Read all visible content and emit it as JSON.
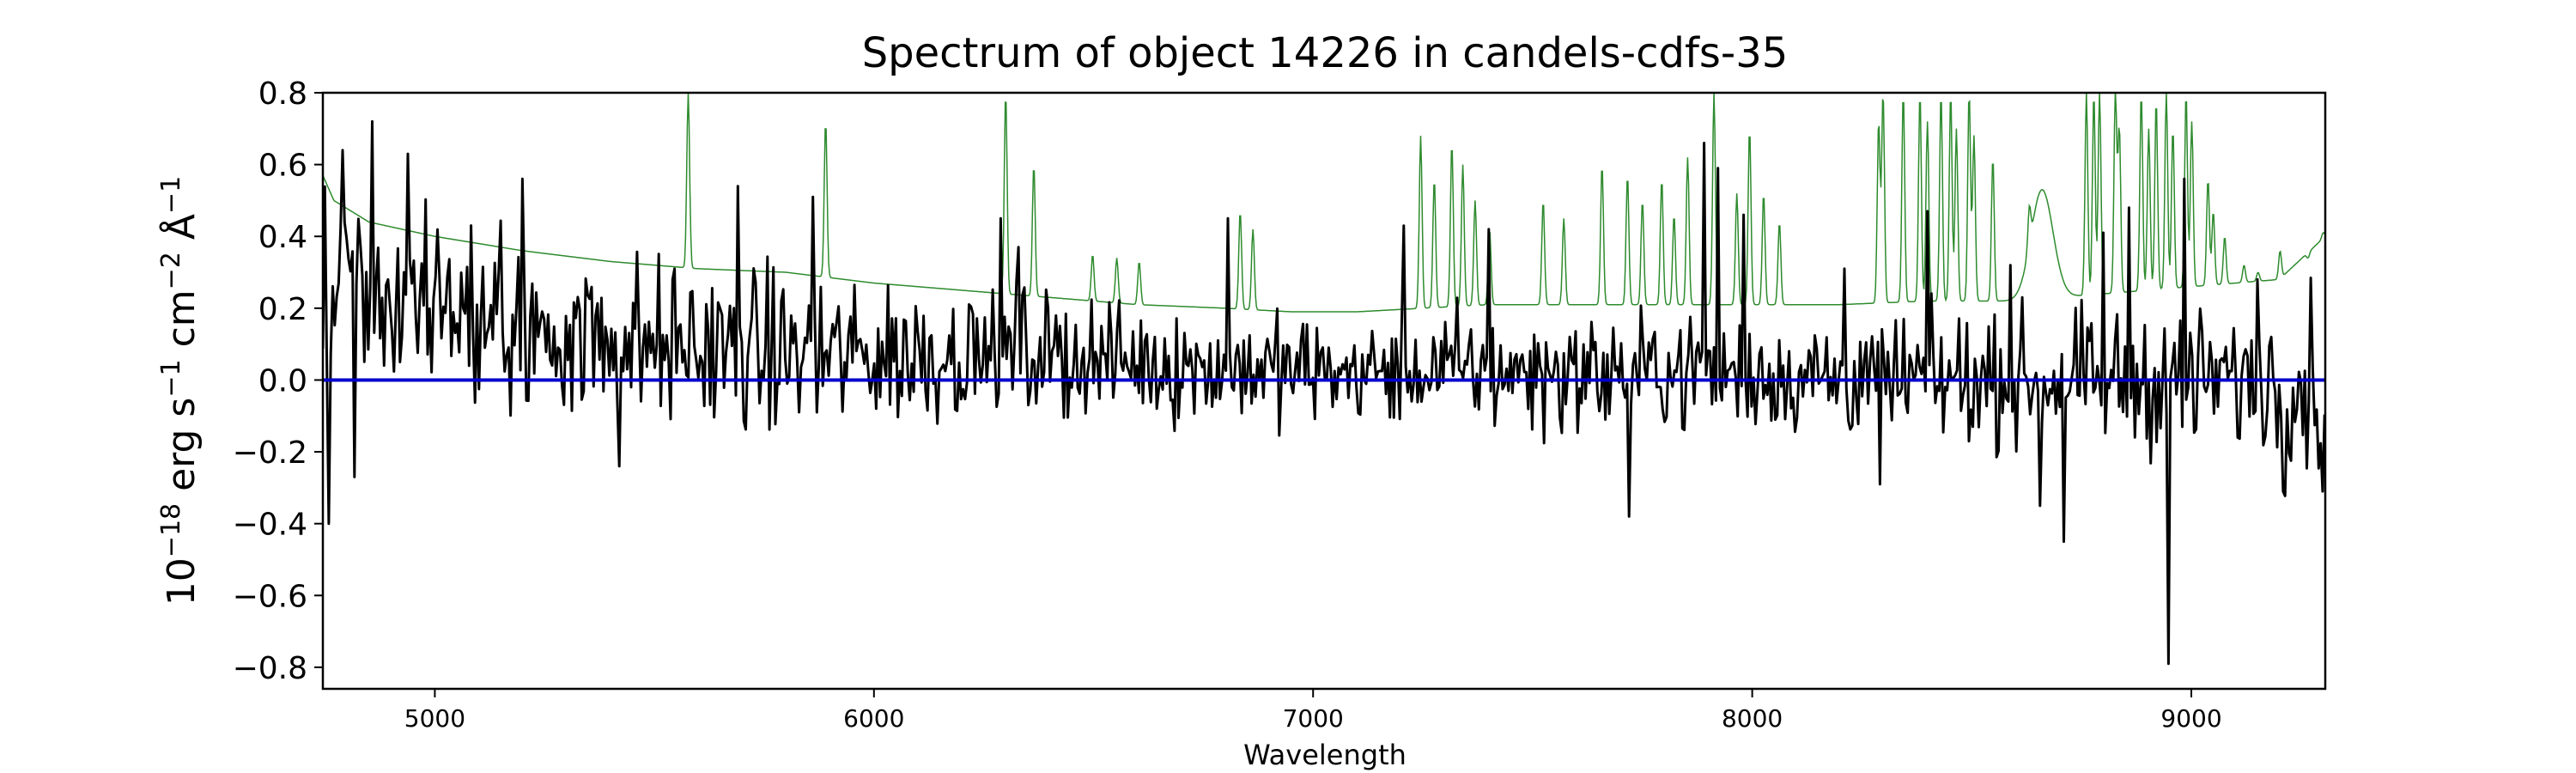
{
  "chart_data": {
    "type": "line",
    "title": "Spectrum of object 14226 in candels-cdfs-35",
    "xlabel": "Wavelength",
    "ylabel_parts": [
      "10",
      "−18",
      " erg s",
      "−1",
      " cm",
      "−2",
      " Å",
      "−1"
    ],
    "xlim": [
      4745,
      9305
    ],
    "ylim": [
      -0.86,
      0.8
    ],
    "xticks": [
      5000,
      6000,
      7000,
      8000,
      9000
    ],
    "yticks": [
      0.8,
      0.6,
      0.4,
      0.2,
      0.0,
      -0.2,
      -0.4,
      -0.6,
      -0.8
    ],
    "ytick_labels": [
      "0.8",
      "0.6",
      "0.4",
      "0.2",
      "0.0",
      "−0.2",
      "−0.4",
      "−0.6",
      "−0.8"
    ],
    "grid": false,
    "legend": "none",
    "series": [
      {
        "role": "flux",
        "color": "#000000",
        "sampling_angstrom": 4.5,
        "smooth_points": [
          [
            4745,
            0.35
          ],
          [
            4800,
            0.3
          ],
          [
            4900,
            0.22
          ],
          [
            5000,
            0.19
          ],
          [
            5100,
            0.16
          ],
          [
            5300,
            0.13
          ],
          [
            5500,
            0.1
          ],
          [
            5700,
            0.08
          ],
          [
            5900,
            0.07
          ],
          [
            6100,
            0.07
          ],
          [
            6300,
            0.08
          ],
          [
            6500,
            0.06
          ],
          [
            6700,
            0.04
          ],
          [
            6900,
            0.03
          ],
          [
            7100,
            0.02
          ],
          [
            7300,
            0.03
          ],
          [
            7500,
            0.02
          ],
          [
            7700,
            0.02
          ],
          [
            7900,
            0.03
          ],
          [
            8100,
            0.01
          ],
          [
            8300,
            0.0
          ],
          [
            8500,
            0.0
          ],
          [
            8700,
            0.0
          ],
          [
            8900,
            0.0
          ],
          [
            9100,
            0.0
          ],
          [
            9305,
            0.0
          ]
        ],
        "spikes": [
          [
            4757,
            -0.4
          ],
          [
            4790,
            0.64
          ],
          [
            4815,
            -0.27
          ],
          [
            4858,
            0.72
          ],
          [
            4940,
            0.63
          ],
          [
            5200,
            0.56
          ],
          [
            5420,
            -0.24
          ],
          [
            5690,
            0.54
          ],
          [
            5860,
            0.51
          ],
          [
            6290,
            0.45
          ],
          [
            6330,
            0.37
          ],
          [
            6805,
            0.45
          ],
          [
            7205,
            0.43
          ],
          [
            7400,
            0.42
          ],
          [
            7720,
            -0.38
          ],
          [
            7890,
            0.66
          ],
          [
            7920,
            0.59
          ],
          [
            7980,
            0.46
          ],
          [
            8210,
            0.31
          ],
          [
            8290,
            -0.29
          ],
          [
            8400,
            0.47
          ],
          [
            8590,
            0.32
          ],
          [
            8655,
            -0.35
          ],
          [
            8710,
            -0.45
          ],
          [
            8800,
            0.41
          ],
          [
            8858,
            0.48
          ],
          [
            8948,
            -0.79
          ],
          [
            8985,
            0.56
          ],
          [
            9150,
            0.28
          ],
          [
            9210,
            -0.31
          ],
          [
            9300,
            -0.31
          ]
        ]
      },
      {
        "role": "model",
        "color": "#0000cc",
        "points": [
          [
            4745,
            0.0
          ],
          [
            9305,
            0.0
          ]
        ]
      },
      {
        "role": "error",
        "color": "#2e8b2e",
        "continuum_points": [
          [
            4745,
            0.57
          ],
          [
            4770,
            0.5
          ],
          [
            4850,
            0.44
          ],
          [
            5000,
            0.4
          ],
          [
            5200,
            0.36
          ],
          [
            5400,
            0.33
          ],
          [
            5600,
            0.31
          ],
          [
            5800,
            0.3
          ],
          [
            6000,
            0.27
          ],
          [
            6200,
            0.25
          ],
          [
            6400,
            0.23
          ],
          [
            6600,
            0.21
          ],
          [
            6800,
            0.2
          ],
          [
            6950,
            0.19
          ],
          [
            7100,
            0.19
          ],
          [
            7250,
            0.2
          ],
          [
            7400,
            0.21
          ],
          [
            7600,
            0.21
          ],
          [
            7800,
            0.21
          ],
          [
            8000,
            0.21
          ],
          [
            8200,
            0.21
          ],
          [
            8400,
            0.22
          ],
          [
            8600,
            0.22
          ],
          [
            8800,
            0.24
          ],
          [
            9000,
            0.26
          ],
          [
            9200,
            0.28
          ],
          [
            9305,
            0.4
          ]
        ],
        "emission_lines": [
          [
            5577,
            0.8
          ],
          [
            5890,
            0.72
          ],
          [
            6300,
            0.8
          ],
          [
            6364,
            0.6
          ],
          [
            6498,
            0.35
          ],
          [
            6553,
            0.34
          ],
          [
            6604,
            0.33
          ],
          [
            6834,
            0.47
          ],
          [
            6863,
            0.42
          ],
          [
            7245,
            0.68
          ],
          [
            7276,
            0.56
          ],
          [
            7316,
            0.66
          ],
          [
            7341,
            0.6
          ],
          [
            7369,
            0.5
          ],
          [
            7402,
            0.42
          ],
          [
            7524,
            0.5
          ],
          [
            7571,
            0.45
          ],
          [
            7658,
            0.6
          ],
          [
            7716,
            0.57
          ],
          [
            7750,
            0.5
          ],
          [
            7794,
            0.56
          ],
          [
            7822,
            0.46
          ],
          [
            7853,
            0.62
          ],
          [
            7913,
            0.8
          ],
          [
            7965,
            0.52
          ],
          [
            7994,
            0.7
          ],
          [
            8026,
            0.52
          ],
          [
            8062,
            0.44
          ],
          [
            8288,
            0.72
          ],
          [
            8298,
            0.8
          ],
          [
            8344,
            0.8
          ],
          [
            8382,
            0.8
          ],
          [
            8399,
            0.72
          ],
          [
            8430,
            0.8
          ],
          [
            8452,
            0.8
          ],
          [
            8465,
            0.7
          ],
          [
            8494,
            0.8
          ],
          [
            8505,
            0.68
          ],
          [
            8548,
            0.62
          ],
          [
            8631,
            0.33
          ],
          [
            8761,
            0.8
          ],
          [
            8778,
            0.8
          ],
          [
            8791,
            0.8
          ],
          [
            8827,
            0.8
          ],
          [
            8836,
            0.7
          ],
          [
            8886,
            0.8
          ],
          [
            8903,
            0.7
          ],
          [
            8920,
            0.78
          ],
          [
            8943,
            0.8
          ],
          [
            8958,
            0.7
          ],
          [
            8988,
            0.8
          ],
          [
            9001,
            0.72
          ],
          [
            9038,
            0.56
          ],
          [
            9050,
            0.47
          ],
          [
            9076,
            0.4
          ],
          [
            9120,
            0.32
          ],
          [
            9152,
            0.3
          ],
          [
            9202,
            0.36
          ],
          [
            9266,
            0.34
          ],
          [
            9300,
            0.41
          ]
        ],
        "broad_features": [
          [
            8660,
            0.53,
            25
          ]
        ]
      }
    ]
  }
}
